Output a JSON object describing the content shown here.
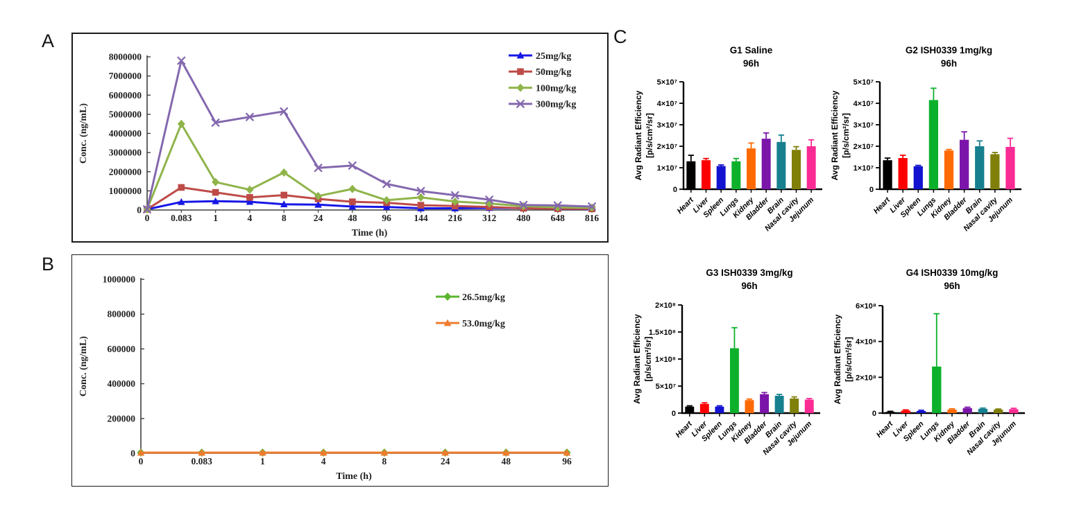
{
  "figure": {
    "panel_labels": {
      "a": "A",
      "b": "B",
      "c": "C"
    }
  },
  "colors": {
    "axis_line_charts": "#3f3f3f",
    "panel_border": "#1a1a1a",
    "bar_palette": [
      "#000000",
      "#FF0000",
      "#1212D0",
      "#0DB02B",
      "#FF6A00",
      "#7B15AA",
      "#17808F",
      "#7F7F0A",
      "#FB2B94"
    ]
  },
  "chart_data": [
    {
      "id": "panelA",
      "type": "line",
      "panel": "A",
      "xlabel": "Time (h)",
      "ylabel": "Conc. (ng/mL)",
      "x_categories": [
        "0",
        "0.083",
        "1",
        "4",
        "8",
        "24",
        "48",
        "96",
        "144",
        "216",
        "312",
        "480",
        "648",
        "816"
      ],
      "ylim": [
        0,
        8000000
      ],
      "ytick_step": 1000000,
      "grid": false,
      "legend_position": "inside-top-right",
      "series": [
        {
          "name": "25mg/kg",
          "color": "#1717E6",
          "marker": "triangle",
          "values": [
            0,
            420000,
            460000,
            430000,
            300000,
            280000,
            180000,
            160000,
            90000,
            90000,
            110000,
            100000,
            60000,
            50000
          ]
        },
        {
          "name": "50mg/kg",
          "color": "#BE4B48",
          "marker": "square",
          "values": [
            0,
            1180000,
            920000,
            660000,
            780000,
            580000,
            430000,
            380000,
            250000,
            210000,
            160000,
            90000,
            70000,
            60000
          ]
        },
        {
          "name": "100mg/kg",
          "color": "#8FB44A",
          "marker": "diamond",
          "values": [
            0,
            4500000,
            1460000,
            1060000,
            1960000,
            730000,
            1100000,
            510000,
            660000,
            440000,
            340000,
            200000,
            140000,
            120000
          ]
        },
        {
          "name": "300mg/kg",
          "color": "#8468AE",
          "marker": "x",
          "values": [
            0,
            7800000,
            4560000,
            4860000,
            5150000,
            2200000,
            2320000,
            1360000,
            990000,
            770000,
            540000,
            260000,
            240000,
            180000
          ]
        }
      ]
    },
    {
      "id": "panelB",
      "type": "line",
      "panel": "B",
      "xlabel": "Time (h)",
      "ylabel": "Conc. (ng/mL)",
      "x_categories": [
        "0",
        "0.083",
        "1",
        "4",
        "8",
        "24",
        "48",
        "96"
      ],
      "ylim": [
        0,
        1000000
      ],
      "ytick_step": 200000,
      "grid": false,
      "legend_position": "inside-right",
      "series": [
        {
          "name": "26.5mg/kg",
          "color": "#5BB52E",
          "marker": "diamond",
          "values": [
            0,
            0,
            0,
            0,
            0,
            0,
            0,
            0
          ]
        },
        {
          "name": "53.0mg/kg",
          "color": "#EE7C2E",
          "marker": "triangle",
          "values": [
            0,
            0,
            0,
            0,
            0,
            0,
            0,
            0
          ]
        }
      ]
    },
    {
      "id": "G1",
      "type": "bar",
      "panel": "C",
      "title": "G1 Saline",
      "subtitle": "96h",
      "ylabel_line1": "Avg Radiant Efficiency",
      "ylabel_line2": "[p/s/cm²/sr]",
      "categories": [
        "Heart",
        "Liver",
        "Spleen",
        "Lungs",
        "Kidney",
        "Bladder",
        "Brain",
        "Nasal cavity",
        "Jejunum"
      ],
      "values": [
        13000000.0,
        13500000.0,
        10800000.0,
        13000000.0,
        19000000.0,
        23500000.0,
        22000000.0,
        18300000.0,
        20000000.0
      ],
      "errors": [
        2800000.0,
        800000.0,
        500000.0,
        1300000.0,
        2500000.0,
        2700000.0,
        3200000.0,
        1500000.0,
        3000000.0
      ],
      "ymax": 50000000.0,
      "yticks": [
        {
          "v": 0,
          "label": "0"
        },
        {
          "v": 10000000.0,
          "label": "1×10⁷"
        },
        {
          "v": 20000000.0,
          "label": "2×10⁷"
        },
        {
          "v": 30000000.0,
          "label": "3×10⁷"
        },
        {
          "v": 40000000.0,
          "label": "4×10⁷"
        },
        {
          "v": 50000000.0,
          "label": "5×10⁷"
        }
      ]
    },
    {
      "id": "G2",
      "type": "bar",
      "panel": "C",
      "title": "G2 ISH0339 1mg/kg",
      "subtitle": "96h",
      "ylabel_line1": "Avg Radiant Efficiency",
      "ylabel_line2": "[p/s/cm²/sr]",
      "categories": [
        "Heart",
        "Liver",
        "Spleen",
        "Lungs",
        "Kidney",
        "Bladder",
        "Brain",
        "Nasal cavity",
        "Jejunum"
      ],
      "values": [
        13500000.0,
        14500000.0,
        10700000.0,
        41500000.0,
        18000000.0,
        23000000.0,
        20000000.0,
        16300000.0,
        19700000.0
      ],
      "errors": [
        1000000.0,
        1300000.0,
        400000.0,
        5500000.0,
        500000.0,
        3700000.0,
        2500000.0,
        800000.0,
        4000000.0
      ],
      "ymax": 50000000.0,
      "yticks": [
        {
          "v": 0,
          "label": "0"
        },
        {
          "v": 10000000.0,
          "label": "1×10⁷"
        },
        {
          "v": 20000000.0,
          "label": "2×10⁷"
        },
        {
          "v": 30000000.0,
          "label": "3×10⁷"
        },
        {
          "v": 40000000.0,
          "label": "4×10⁷"
        },
        {
          "v": 50000000.0,
          "label": "5×10⁷"
        }
      ]
    },
    {
      "id": "G3",
      "type": "bar",
      "panel": "C",
      "title": "G3 ISH0339 3mg/kg",
      "subtitle": "96h",
      "ylabel_line1": "Avg Radiant Efficiency",
      "ylabel_line2": "[p/s/cm²/sr]",
      "categories": [
        "Heart",
        "Liver",
        "Spleen",
        "Lungs",
        "Kidney",
        "Bladder",
        "Brain",
        "Nasal cavity",
        "Jejunum"
      ],
      "values": [
        12000000.0,
        17000000.0,
        12000000.0,
        120000000.0,
        24000000.0,
        35000000.0,
        32000000.0,
        27000000.0,
        25000000.0
      ],
      "errors": [
        1500000.0,
        2000000.0,
        1500000.0,
        38000000.0,
        2000000.0,
        3000000.0,
        2500000.0,
        3000000.0,
        2000000.0
      ],
      "ymax": 200000000.0,
      "yticks": [
        {
          "v": 0,
          "label": "0"
        },
        {
          "v": 50000000.0,
          "label": "5×10⁷"
        },
        {
          "v": 100000000.0,
          "label": "1×10⁸"
        },
        {
          "v": 150000000.0,
          "label": "1.5×10⁸"
        },
        {
          "v": 200000000.0,
          "label": "2×10⁸"
        }
      ]
    },
    {
      "id": "G4",
      "type": "bar",
      "panel": "C",
      "title": "G4 ISH0339 10mg/kg",
      "subtitle": "96h",
      "ylabel_line1": "Avg Radiant Efficiency",
      "ylabel_line2": "[p/s/cm²/sr]",
      "categories": [
        "Heart",
        "Liver",
        "Spleen",
        "Lungs",
        "Kidney",
        "Bladder",
        "Brain",
        "Nasal cavity",
        "Jejunum"
      ],
      "values": [
        7000000.0,
        14000000.0,
        12000000.0,
        260000000.0,
        20000000.0,
        28000000.0,
        24000000.0,
        20000000.0,
        22000000.0
      ],
      "errors": [
        3000000.0,
        4000000.0,
        4000000.0,
        295000000.0,
        4000000.0,
        5000000.0,
        4000000.0,
        3000000.0,
        5000000.0
      ],
      "ymax": 600000000.0,
      "yticks": [
        {
          "v": 0,
          "label": "0"
        },
        {
          "v": 200000000.0,
          "label": "2×10⁸"
        },
        {
          "v": 400000000.0,
          "label": "4×10⁸"
        },
        {
          "v": 600000000.0,
          "label": "6×10⁸"
        }
      ]
    }
  ]
}
